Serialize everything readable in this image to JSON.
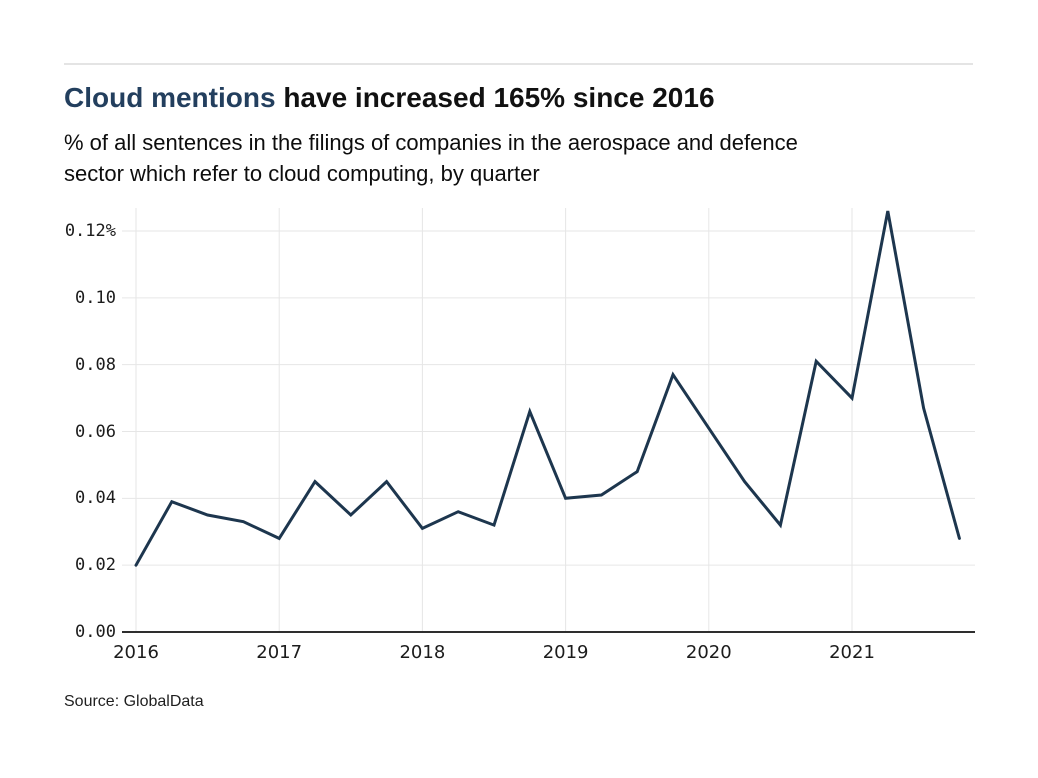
{
  "page": {
    "title_highlight": "Cloud mentions",
    "title_rest": " have increased 165% since 2016",
    "subtitle_lines": [
      "% of all sentences in the filings of companies in the aerospace and defence",
      "sector which refer to cloud computing, by quarter"
    ],
    "source": "Source: GlobalData"
  },
  "colors": {
    "title_highlight": "#233f5e",
    "line": "#1d364e",
    "grid": "#e6e6e6",
    "axis": "#2e2e2e",
    "text": "#1c1c1c"
  },
  "chart_data": {
    "type": "line",
    "title": "Cloud mentions have increased 165% since 2016",
    "subtitle": "% of all sentences in the filings of companies in the aerospace and defence sector which refer to cloud computing, by quarter",
    "unit": "% of all sentences",
    "grid": true,
    "legend": "none",
    "source": "Source: GlobalData",
    "ylim": [
      0,
      0.1269
    ],
    "x": [
      "2016 Q1",
      "2016 Q2",
      "2016 Q3",
      "2016 Q4",
      "2017 Q1",
      "2017 Q2",
      "2017 Q3",
      "2017 Q4",
      "2018 Q1",
      "2018 Q2",
      "2018 Q3",
      "2018 Q4",
      "2019 Q1",
      "2019 Q2",
      "2019 Q3",
      "2019 Q4",
      "2020 Q1",
      "2020 Q2",
      "2020 Q3",
      "2020 Q4",
      "2021 Q1",
      "2021 Q2",
      "2021 Q3",
      "2021 Q4"
    ],
    "values": [
      0.02,
      0.039,
      0.035,
      0.033,
      0.028,
      0.045,
      0.035,
      0.045,
      0.031,
      0.036,
      0.032,
      0.066,
      0.04,
      0.041,
      0.048,
      0.077,
      0.061,
      0.045,
      0.032,
      0.081,
      0.07,
      0.126,
      0.067,
      0.028
    ],
    "y_ticks": [
      {
        "label": "0.12%",
        "value": 0.12
      },
      {
        "label": "0.10",
        "value": 0.1
      },
      {
        "label": "0.08",
        "value": 0.08
      },
      {
        "label": "0.06",
        "value": 0.06
      },
      {
        "label": "0.04",
        "value": 0.04
      },
      {
        "label": "0.02",
        "value": 0.02
      },
      {
        "label": "0.00",
        "value": 0.0
      }
    ],
    "x_ticks": [
      {
        "label": "2016",
        "quarter_index": 0
      },
      {
        "label": "2017",
        "quarter_index": 4
      },
      {
        "label": "2018",
        "quarter_index": 8
      },
      {
        "label": "2019",
        "quarter_index": 12
      },
      {
        "label": "2020",
        "quarter_index": 16
      },
      {
        "label": "2021",
        "quarter_index": 20
      }
    ]
  }
}
